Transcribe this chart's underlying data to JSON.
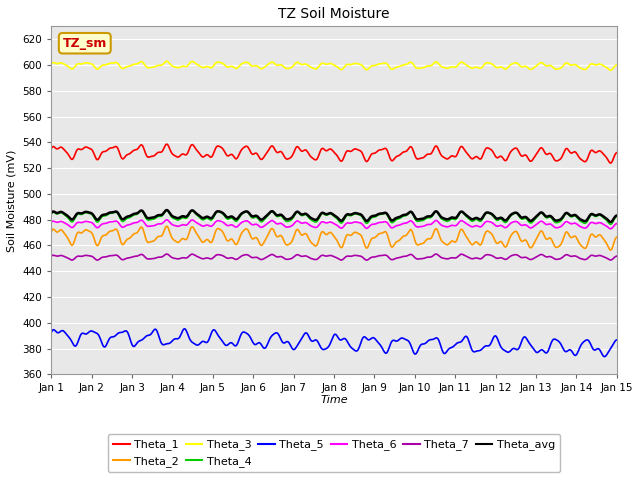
{
  "title": "TZ Soil Moisture",
  "xlabel": "Time",
  "ylabel": "Soil Moisture (mV)",
  "ylim": [
    360,
    630
  ],
  "yticks": [
    360,
    380,
    400,
    420,
    440,
    460,
    480,
    500,
    520,
    540,
    560,
    580,
    600,
    620
  ],
  "n_points": 1000,
  "days": 14,
  "series": {
    "Theta_1": {
      "color": "#ff0000",
      "base": 533,
      "amp": 4,
      "trend": -3,
      "freq": 1.5
    },
    "Theta_2": {
      "color": "#ff9900",
      "base": 468,
      "amp": 5,
      "trend": -4,
      "freq": 1.5
    },
    "Theta_3": {
      "color": "#ffff00",
      "base": 600,
      "amp": 2,
      "trend": -1,
      "freq": 1.5
    },
    "Theta_4": {
      "color": "#00cc00",
      "base": 483,
      "amp": 3,
      "trend": -2,
      "freq": 1.5
    },
    "Theta_5": {
      "color": "#0000ff",
      "base": 390,
      "amp": 5,
      "trend": -10,
      "freq": 1.3
    },
    "Theta_6": {
      "color": "#ff00ff",
      "base": 477,
      "amp": 2,
      "trend": -1,
      "freq": 1.5
    },
    "Theta_7": {
      "color": "#aa00aa",
      "base": 451,
      "amp": 1.5,
      "trend": 0,
      "freq": 1.5
    },
    "Theta_avg": {
      "color": "#000000",
      "base": 484,
      "amp": 2.5,
      "trend": -2,
      "freq": 1.5
    }
  },
  "background_color": "#e8e8e8",
  "label_box_facecolor": "#ffffcc",
  "label_box_edgecolor": "#cc9900",
  "label_text": "TZ_sm",
  "label_text_color": "#cc0000",
  "legend_order": [
    "Theta_1",
    "Theta_2",
    "Theta_3",
    "Theta_4",
    "Theta_5",
    "Theta_6",
    "Theta_7",
    "Theta_avg"
  ]
}
